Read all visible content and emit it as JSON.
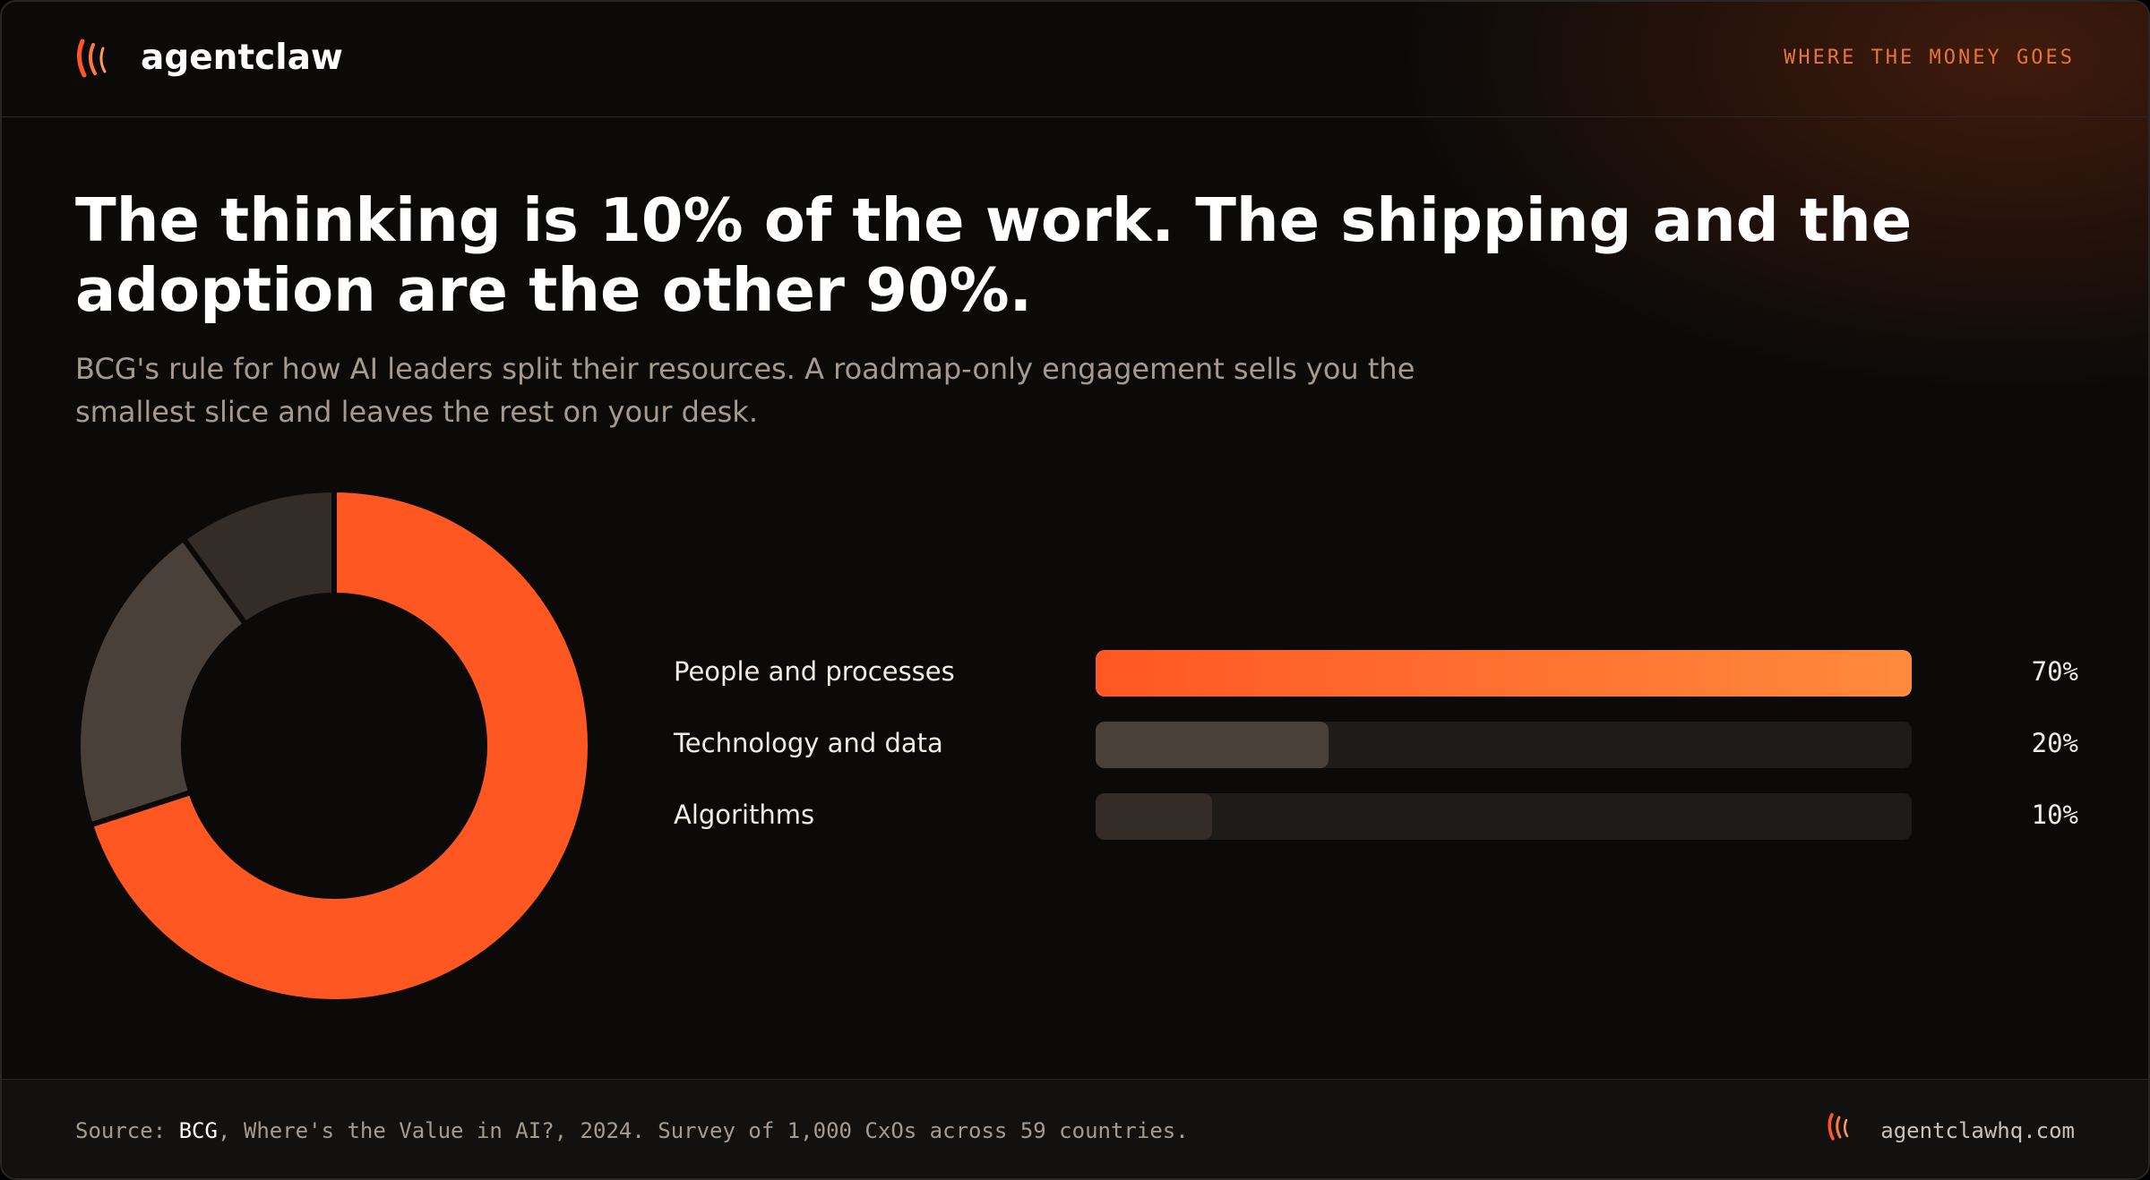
{
  "header": {
    "brand": "agentclaw",
    "tag": "WHERE THE MONEY GOES"
  },
  "chart_data": {
    "type": "donut",
    "title": "The thinking is 10% of the work. The shipping and the adoption are the other 90%.",
    "subtitle": "BCG's rule for how AI leaders split their resources. A roadmap-only engagement sells you the smallest slice and leaves the rest on your desk.",
    "categories": [
      "People and processes",
      "Technology and data",
      "Algorithms"
    ],
    "values": [
      70,
      20,
      10
    ],
    "value_labels": [
      "70%",
      "20%",
      "10%"
    ],
    "colors": [
      "#ff5722",
      "#4a403a",
      "#332c28"
    ]
  },
  "footer": {
    "source_label": "Source:",
    "source_name": "BCG",
    "source_text": ", Where's the Value in AI?, 2024. Survey of 1,000 CxOs across 59 countries.",
    "site": "agentclawhq.com"
  }
}
